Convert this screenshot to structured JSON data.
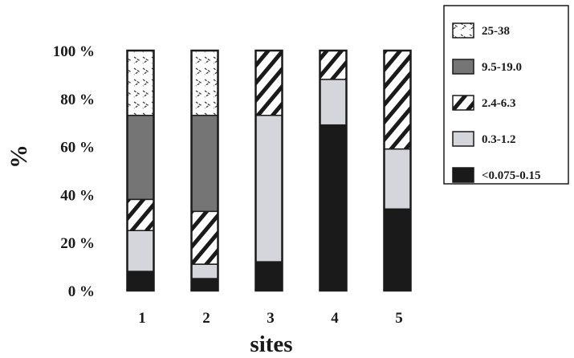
{
  "chart_data": {
    "type": "bar",
    "stacked": true,
    "percent": true,
    "xlabel": "sites",
    "ylabel": "%",
    "categories": [
      "1",
      "2",
      "3",
      "4",
      "5"
    ],
    "ylim": [
      0,
      100
    ],
    "yticks": [
      0,
      20,
      40,
      60,
      80,
      100
    ],
    "ytick_labels": [
      "0 %",
      "20 %",
      "40 %",
      "60 %",
      "80 %",
      "100 %"
    ],
    "series": [
      {
        "name": "<0.075-0.15",
        "pattern": "solid-black",
        "color": "#1a1a1a",
        "values": [
          8,
          5,
          12,
          69,
          34
        ]
      },
      {
        "name": "0.3-1.2",
        "pattern": "light-gray",
        "color": "#d4d6db",
        "values": [
          17,
          6,
          61,
          19,
          25
        ]
      },
      {
        "name": "2.4-6.3",
        "pattern": "diagonal-hatch",
        "color": "#ffffff",
        "values": [
          13,
          22,
          27,
          12,
          41
        ]
      },
      {
        "name": "9.5-19.0",
        "pattern": "dark-gray",
        "color": "#757575",
        "values": [
          35,
          40,
          0,
          0,
          0
        ]
      },
      {
        "name": "25-38",
        "pattern": "chevron",
        "color": "#ffffff",
        "values": [
          27,
          27,
          0,
          0,
          0
        ]
      }
    ],
    "legend_position": "top-right",
    "legend_order": [
      "25-38",
      "9.5-19.0",
      "2.4-6.3",
      "0.3-1.2",
      "<0.075-0.15"
    ],
    "grid": false
  }
}
